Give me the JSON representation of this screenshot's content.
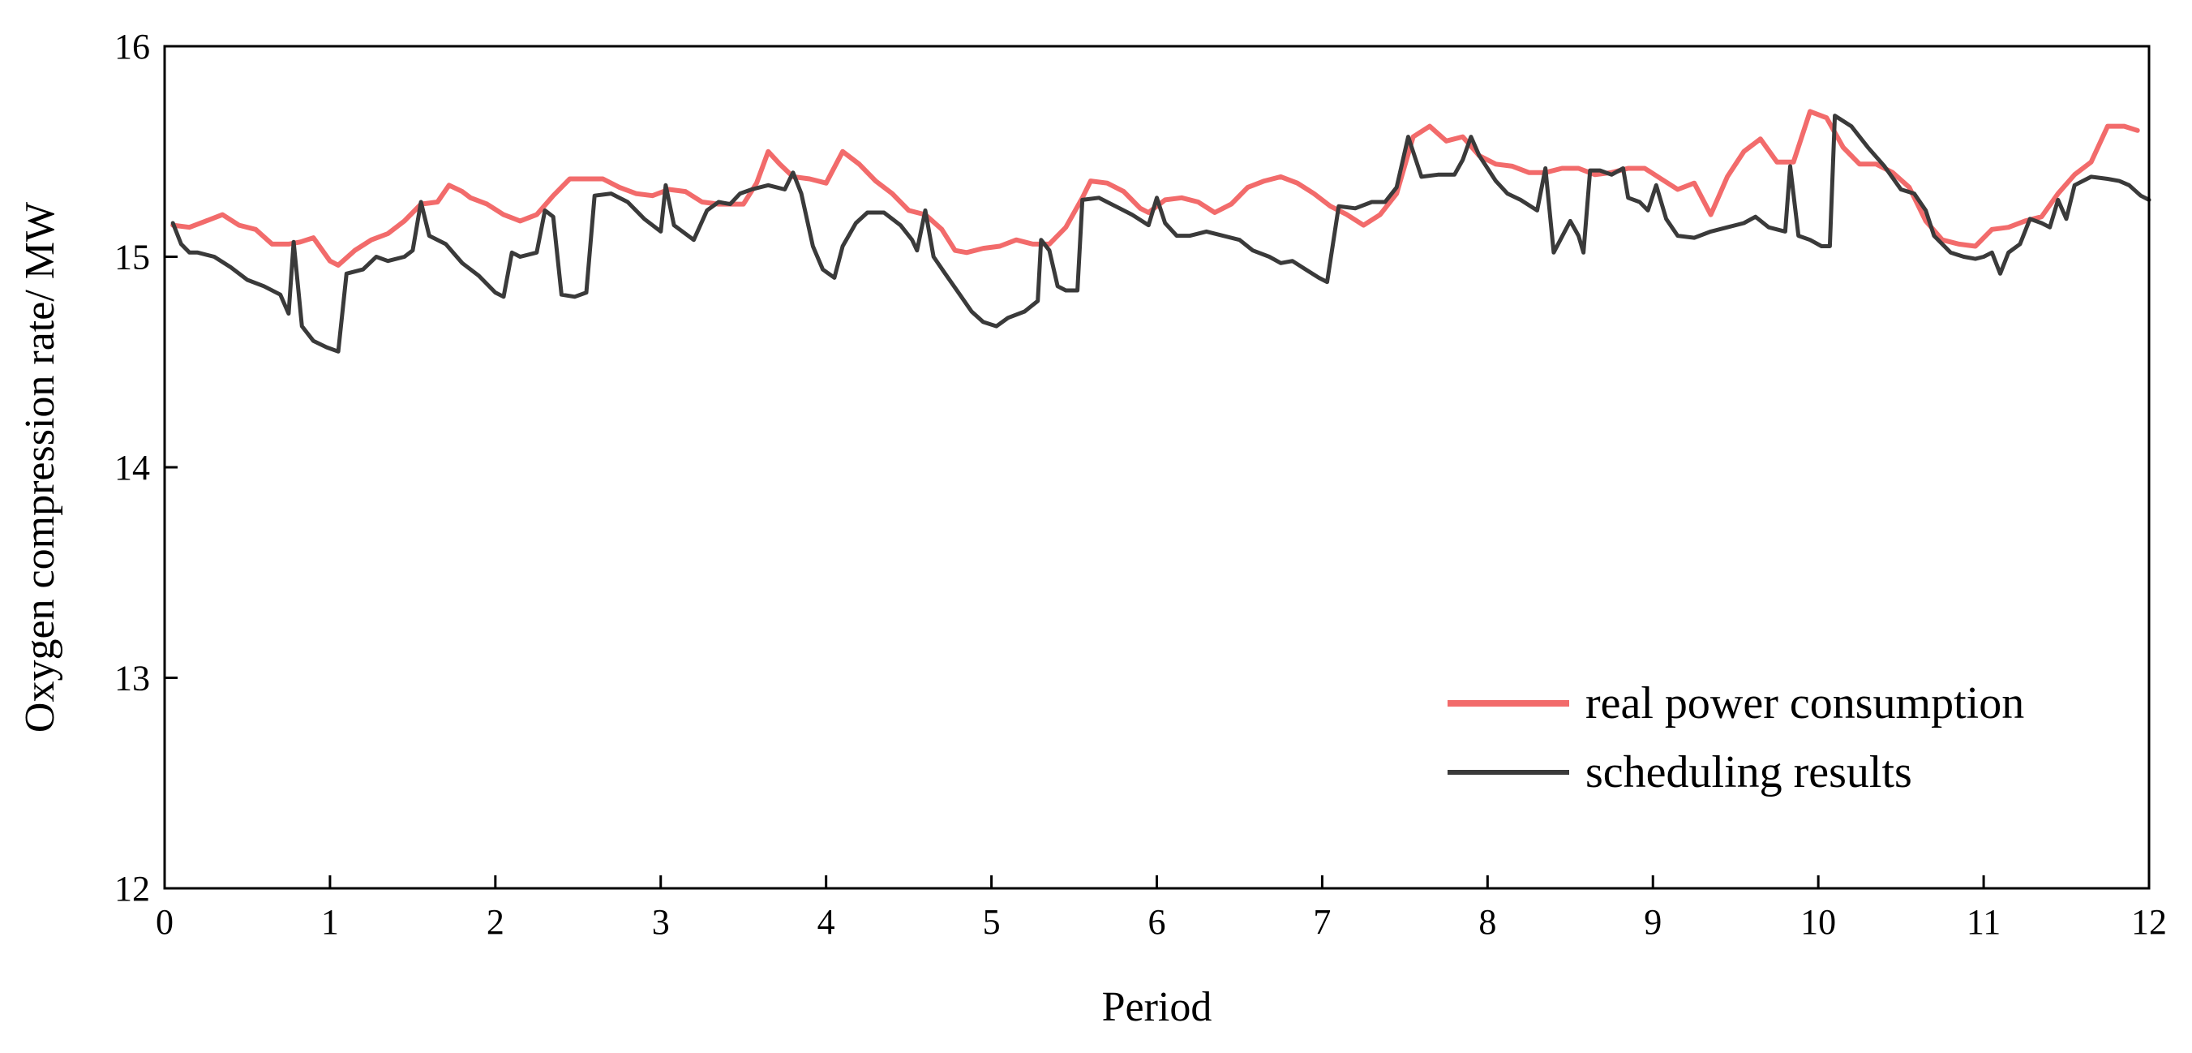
{
  "chart_data": {
    "type": "line",
    "xlabel": "Period",
    "ylabel": "Oxygen compression rate/ MW",
    "xlim": [
      0,
      12
    ],
    "ylim": [
      12,
      16
    ],
    "xticks": [
      "0",
      "1",
      "2",
      "3",
      "4",
      "5",
      "6",
      "7",
      "8",
      "9",
      "10",
      "11",
      "12"
    ],
    "yticks": [
      "12",
      "13",
      "14",
      "15",
      "16"
    ],
    "grid": false,
    "legend_position": "bottom-right",
    "series": [
      {
        "name": "real power consumption",
        "color": "#f26b6b",
        "points": [
          [
            0.05,
            15.15
          ],
          [
            0.15,
            15.14
          ],
          [
            0.25,
            15.17
          ],
          [
            0.35,
            15.2
          ],
          [
            0.45,
            15.15
          ],
          [
            0.55,
            15.13
          ],
          [
            0.65,
            15.06
          ],
          [
            0.75,
            15.06
          ],
          [
            0.82,
            15.07
          ],
          [
            0.9,
            15.09
          ],
          [
            1.0,
            14.98
          ],
          [
            1.05,
            14.96
          ],
          [
            1.15,
            15.03
          ],
          [
            1.25,
            15.08
          ],
          [
            1.35,
            15.11
          ],
          [
            1.45,
            15.17
          ],
          [
            1.55,
            15.25
          ],
          [
            1.65,
            15.26
          ],
          [
            1.72,
            15.34
          ],
          [
            1.8,
            15.31
          ],
          [
            1.85,
            15.28
          ],
          [
            1.95,
            15.25
          ],
          [
            2.05,
            15.2
          ],
          [
            2.15,
            15.17
          ],
          [
            2.25,
            15.2
          ],
          [
            2.35,
            15.29
          ],
          [
            2.45,
            15.37
          ],
          [
            2.55,
            15.37
          ],
          [
            2.65,
            15.37
          ],
          [
            2.75,
            15.33
          ],
          [
            2.85,
            15.3
          ],
          [
            2.95,
            15.29
          ],
          [
            3.05,
            15.32
          ],
          [
            3.15,
            15.31
          ],
          [
            3.25,
            15.26
          ],
          [
            3.35,
            15.25
          ],
          [
            3.5,
            15.25
          ],
          [
            3.58,
            15.35
          ],
          [
            3.65,
            15.5
          ],
          [
            3.72,
            15.44
          ],
          [
            3.8,
            15.38
          ],
          [
            3.9,
            15.37
          ],
          [
            4.0,
            15.35
          ],
          [
            4.1,
            15.5
          ],
          [
            4.2,
            15.44
          ],
          [
            4.3,
            15.36
          ],
          [
            4.4,
            15.3
          ],
          [
            4.5,
            15.22
          ],
          [
            4.6,
            15.2
          ],
          [
            4.7,
            15.13
          ],
          [
            4.78,
            15.03
          ],
          [
            4.85,
            15.02
          ],
          [
            4.95,
            15.04
          ],
          [
            5.05,
            15.05
          ],
          [
            5.15,
            15.08
          ],
          [
            5.25,
            15.06
          ],
          [
            5.35,
            15.06
          ],
          [
            5.45,
            15.14
          ],
          [
            5.55,
            15.28
          ],
          [
            5.6,
            15.36
          ],
          [
            5.7,
            15.35
          ],
          [
            5.8,
            15.31
          ],
          [
            5.9,
            15.23
          ],
          [
            5.95,
            15.21
          ],
          [
            6.05,
            15.27
          ],
          [
            6.15,
            15.28
          ],
          [
            6.25,
            15.26
          ],
          [
            6.35,
            15.21
          ],
          [
            6.45,
            15.25
          ],
          [
            6.55,
            15.33
          ],
          [
            6.65,
            15.36
          ],
          [
            6.75,
            15.38
          ],
          [
            6.85,
            15.35
          ],
          [
            6.95,
            15.3
          ],
          [
            7.05,
            15.24
          ],
          [
            7.15,
            15.2
          ],
          [
            7.25,
            15.15
          ],
          [
            7.35,
            15.2
          ],
          [
            7.45,
            15.3
          ],
          [
            7.55,
            15.57
          ],
          [
            7.65,
            15.62
          ],
          [
            7.75,
            15.55
          ],
          [
            7.85,
            15.57
          ],
          [
            7.95,
            15.48
          ],
          [
            8.05,
            15.44
          ],
          [
            8.15,
            15.43
          ],
          [
            8.25,
            15.4
          ],
          [
            8.35,
            15.4
          ],
          [
            8.45,
            15.42
          ],
          [
            8.55,
            15.42
          ],
          [
            8.65,
            15.39
          ],
          [
            8.75,
            15.4
          ],
          [
            8.85,
            15.42
          ],
          [
            8.95,
            15.42
          ],
          [
            9.05,
            15.37
          ],
          [
            9.15,
            15.32
          ],
          [
            9.25,
            15.35
          ],
          [
            9.35,
            15.2
          ],
          [
            9.45,
            15.38
          ],
          [
            9.55,
            15.5
          ],
          [
            9.65,
            15.56
          ],
          [
            9.75,
            15.45
          ],
          [
            9.85,
            15.45
          ],
          [
            9.95,
            15.69
          ],
          [
            10.05,
            15.66
          ],
          [
            10.15,
            15.52
          ],
          [
            10.25,
            15.44
          ],
          [
            10.35,
            15.44
          ],
          [
            10.45,
            15.4
          ],
          [
            10.55,
            15.33
          ],
          [
            10.65,
            15.17
          ],
          [
            10.75,
            15.08
          ],
          [
            10.85,
            15.06
          ],
          [
            10.95,
            15.05
          ],
          [
            11.05,
            15.13
          ],
          [
            11.15,
            15.14
          ],
          [
            11.25,
            15.17
          ],
          [
            11.35,
            15.19
          ],
          [
            11.45,
            15.3
          ],
          [
            11.55,
            15.39
          ],
          [
            11.65,
            15.45
          ],
          [
            11.75,
            15.62
          ],
          [
            11.85,
            15.62
          ],
          [
            11.93,
            15.6
          ]
        ]
      },
      {
        "name": "scheduling results",
        "color": "#3a3a3a",
        "points": [
          [
            0.05,
            15.16
          ],
          [
            0.1,
            15.06
          ],
          [
            0.15,
            15.02
          ],
          [
            0.2,
            15.02
          ],
          [
            0.3,
            15.0
          ],
          [
            0.4,
            14.95
          ],
          [
            0.5,
            14.89
          ],
          [
            0.6,
            14.86
          ],
          [
            0.7,
            14.82
          ],
          [
            0.75,
            14.73
          ],
          [
            0.78,
            15.07
          ],
          [
            0.83,
            14.67
          ],
          [
            0.9,
            14.6
          ],
          [
            0.98,
            14.57
          ],
          [
            1.05,
            14.55
          ],
          [
            1.1,
            14.92
          ],
          [
            1.15,
            14.93
          ],
          [
            1.2,
            14.94
          ],
          [
            1.28,
            15.0
          ],
          [
            1.35,
            14.98
          ],
          [
            1.45,
            15.0
          ],
          [
            1.5,
            15.03
          ],
          [
            1.55,
            15.26
          ],
          [
            1.6,
            15.1
          ],
          [
            1.7,
            15.06
          ],
          [
            1.8,
            14.97
          ],
          [
            1.9,
            14.91
          ],
          [
            2.0,
            14.83
          ],
          [
            2.05,
            14.81
          ],
          [
            2.1,
            15.02
          ],
          [
            2.15,
            15.0
          ],
          [
            2.25,
            15.02
          ],
          [
            2.3,
            15.22
          ],
          [
            2.35,
            15.19
          ],
          [
            2.4,
            14.82
          ],
          [
            2.48,
            14.81
          ],
          [
            2.55,
            14.83
          ],
          [
            2.6,
            15.29
          ],
          [
            2.7,
            15.3
          ],
          [
            2.8,
            15.26
          ],
          [
            2.9,
            15.18
          ],
          [
            3.0,
            15.12
          ],
          [
            3.03,
            15.34
          ],
          [
            3.08,
            15.15
          ],
          [
            3.2,
            15.08
          ],
          [
            3.28,
            15.22
          ],
          [
            3.35,
            15.26
          ],
          [
            3.42,
            15.25
          ],
          [
            3.48,
            15.3
          ],
          [
            3.55,
            15.32
          ],
          [
            3.65,
            15.34
          ],
          [
            3.75,
            15.32
          ],
          [
            3.8,
            15.4
          ],
          [
            3.85,
            15.3
          ],
          [
            3.92,
            15.05
          ],
          [
            3.98,
            14.94
          ],
          [
            4.05,
            14.9
          ],
          [
            4.1,
            15.05
          ],
          [
            4.18,
            15.16
          ],
          [
            4.25,
            15.21
          ],
          [
            4.35,
            15.21
          ],
          [
            4.45,
            15.15
          ],
          [
            4.52,
            15.08
          ],
          [
            4.55,
            15.03
          ],
          [
            4.6,
            15.22
          ],
          [
            4.65,
            15.0
          ],
          [
            4.72,
            14.92
          ],
          [
            4.8,
            14.83
          ],
          [
            4.88,
            14.74
          ],
          [
            4.95,
            14.69
          ],
          [
            5.03,
            14.67
          ],
          [
            5.1,
            14.71
          ],
          [
            5.2,
            14.74
          ],
          [
            5.28,
            14.79
          ],
          [
            5.3,
            15.08
          ],
          [
            5.35,
            15.03
          ],
          [
            5.4,
            14.86
          ],
          [
            5.45,
            14.84
          ],
          [
            5.52,
            14.84
          ],
          [
            5.55,
            15.27
          ],
          [
            5.65,
            15.28
          ],
          [
            5.75,
            15.24
          ],
          [
            5.85,
            15.2
          ],
          [
            5.95,
            15.15
          ],
          [
            6.0,
            15.28
          ],
          [
            6.05,
            15.16
          ],
          [
            6.12,
            15.1
          ],
          [
            6.2,
            15.1
          ],
          [
            6.3,
            15.12
          ],
          [
            6.4,
            15.1
          ],
          [
            6.5,
            15.08
          ],
          [
            6.58,
            15.03
          ],
          [
            6.68,
            15.0
          ],
          [
            6.75,
            14.97
          ],
          [
            6.82,
            14.98
          ],
          [
            6.9,
            14.94
          ],
          [
            6.98,
            14.9
          ],
          [
            7.03,
            14.88
          ],
          [
            7.1,
            15.24
          ],
          [
            7.2,
            15.23
          ],
          [
            7.3,
            15.26
          ],
          [
            7.38,
            15.26
          ],
          [
            7.45,
            15.33
          ],
          [
            7.52,
            15.57
          ],
          [
            7.6,
            15.38
          ],
          [
            7.7,
            15.39
          ],
          [
            7.8,
            15.39
          ],
          [
            7.85,
            15.46
          ],
          [
            7.9,
            15.57
          ],
          [
            7.95,
            15.48
          ],
          [
            8.05,
            15.36
          ],
          [
            8.12,
            15.3
          ],
          [
            8.2,
            15.27
          ],
          [
            8.3,
            15.22
          ],
          [
            8.35,
            15.42
          ],
          [
            8.4,
            15.02
          ],
          [
            8.5,
            15.17
          ],
          [
            8.55,
            15.1
          ],
          [
            8.58,
            15.02
          ],
          [
            8.62,
            15.41
          ],
          [
            8.68,
            15.41
          ],
          [
            8.75,
            15.39
          ],
          [
            8.82,
            15.42
          ],
          [
            8.85,
            15.28
          ],
          [
            8.92,
            15.26
          ],
          [
            8.97,
            15.22
          ],
          [
            9.02,
            15.34
          ],
          [
            9.08,
            15.18
          ],
          [
            9.15,
            15.1
          ],
          [
            9.25,
            15.09
          ],
          [
            9.35,
            15.12
          ],
          [
            9.45,
            15.14
          ],
          [
            9.55,
            15.16
          ],
          [
            9.62,
            15.19
          ],
          [
            9.7,
            15.14
          ],
          [
            9.75,
            15.13
          ],
          [
            9.8,
            15.12
          ],
          [
            9.83,
            15.43
          ],
          [
            9.88,
            15.1
          ],
          [
            9.95,
            15.08
          ],
          [
            10.02,
            15.05
          ],
          [
            10.07,
            15.05
          ],
          [
            10.1,
            15.67
          ],
          [
            10.2,
            15.62
          ],
          [
            10.3,
            15.52
          ],
          [
            10.4,
            15.43
          ],
          [
            10.5,
            15.32
          ],
          [
            10.58,
            15.3
          ],
          [
            10.65,
            15.22
          ],
          [
            10.7,
            15.1
          ],
          [
            10.8,
            15.02
          ],
          [
            10.88,
            15.0
          ],
          [
            10.95,
            14.99
          ],
          [
            11.0,
            15.0
          ],
          [
            11.05,
            15.02
          ],
          [
            11.1,
            14.92
          ],
          [
            11.15,
            15.02
          ],
          [
            11.22,
            15.06
          ],
          [
            11.28,
            15.18
          ],
          [
            11.35,
            15.16
          ],
          [
            11.4,
            15.14
          ],
          [
            11.45,
            15.27
          ],
          [
            11.5,
            15.18
          ],
          [
            11.55,
            15.34
          ],
          [
            11.65,
            15.38
          ],
          [
            11.75,
            15.37
          ],
          [
            11.82,
            15.36
          ],
          [
            11.88,
            15.34
          ],
          [
            11.95,
            15.29
          ],
          [
            12.0,
            15.27
          ]
        ]
      }
    ]
  }
}
